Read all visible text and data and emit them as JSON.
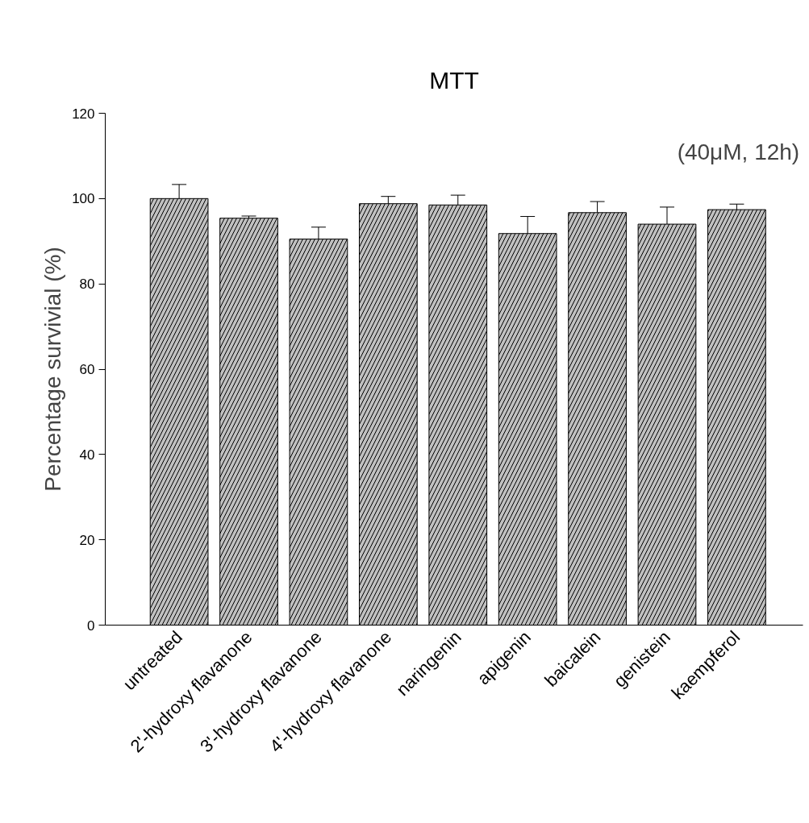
{
  "chart_data": {
    "type": "bar",
    "title": "MTT",
    "ylabel": "Percentage survivial (%)",
    "categories": [
      "untreated",
      "2'-hydroxy flavanone",
      "3'-hydroxy flavanone",
      "4'-hydroxy flavanone",
      "naringenin",
      "apigenin",
      "baicalein",
      "genistein",
      "kaempferol"
    ],
    "values": [
      100,
      95.4,
      90.5,
      98.8,
      98.5,
      91.8,
      96.7,
      94.0,
      97.4
    ],
    "errors": [
      3.3,
      0.5,
      2.8,
      1.7,
      2.3,
      4.0,
      2.6,
      4.0,
      1.3
    ],
    "color": "#c0c0c0",
    "ylim": [
      0,
      120
    ],
    "yticks": [
      0,
      20,
      40,
      60,
      80,
      100,
      120
    ],
    "grid": false,
    "annotations": [
      "(40μM, 12h)"
    ]
  }
}
